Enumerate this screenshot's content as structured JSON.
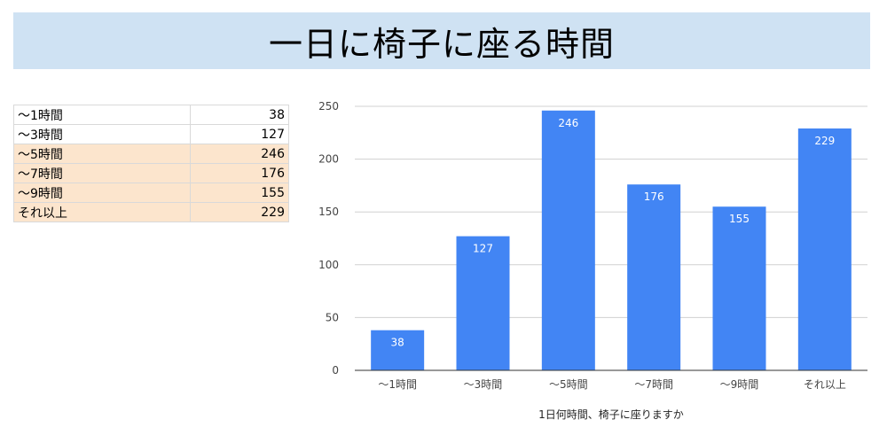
{
  "title": "一日に椅子に座る時間",
  "table": {
    "rows": [
      {
        "label": "～1時間",
        "value": "38",
        "highlight": false
      },
      {
        "label": "～3時間",
        "value": "127",
        "highlight": false
      },
      {
        "label": "～5時間",
        "value": "246",
        "highlight": true
      },
      {
        "label": "～7時間",
        "value": "176",
        "highlight": true
      },
      {
        "label": "～9時間",
        "value": "155",
        "highlight": true
      },
      {
        "label": "それ以上",
        "value": "229",
        "highlight": true
      }
    ]
  },
  "chart_data": {
    "type": "bar",
    "categories": [
      "～1時間",
      "～3時間",
      "～5時間",
      "～7時間",
      "～9時間",
      "それ以上"
    ],
    "values": [
      38,
      127,
      246,
      176,
      155,
      229
    ],
    "title": "",
    "xlabel": "1日何時間、椅子に座りますか",
    "ylabel": "",
    "ylim": [
      0,
      250
    ],
    "yticks": [
      0,
      50,
      100,
      150,
      200,
      250
    ],
    "grid": true,
    "legend": "none",
    "bar_color": "#4285f4"
  }
}
